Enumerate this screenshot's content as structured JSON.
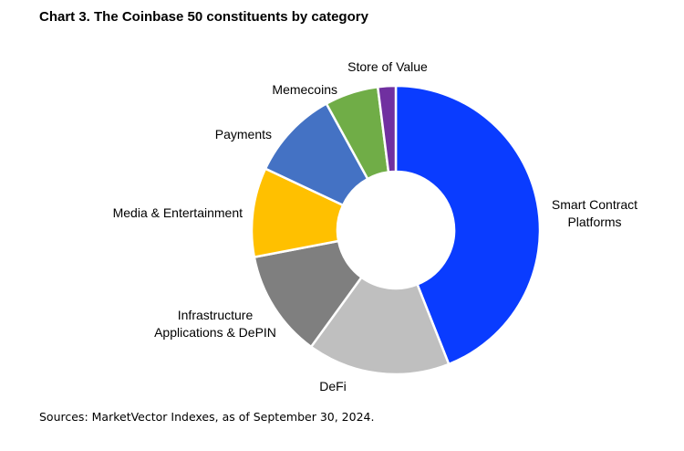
{
  "title": "Chart 3. The Coinbase 50 constituents by category",
  "source": "Sources: MarketVector Indexes, as of September 30, 2024.",
  "chart_data": {
    "type": "pie",
    "donut": true,
    "legend": "none",
    "categories": [
      "Smart Contract Platforms",
      "DeFi",
      "Infrastructure Applications & DePIN",
      "Media & Entertainment",
      "Payments",
      "Memecoins",
      "Store of Value"
    ],
    "label_lines": [
      [
        "Smart Contract",
        "Platforms"
      ],
      [
        "DeFi"
      ],
      [
        "Infrastructure",
        "Applications & DePIN"
      ],
      [
        "Media & Entertainment"
      ],
      [
        "Payments"
      ],
      [
        "Memecoins"
      ],
      [
        "Store of Value"
      ]
    ],
    "values": [
      44,
      16,
      12,
      10,
      10,
      6,
      2
    ],
    "colors": [
      "#0a3cff",
      "#bfbfbf",
      "#7f7f7f",
      "#ffc000",
      "#4472c4",
      "#70ad47",
      "#7030a0"
    ]
  }
}
